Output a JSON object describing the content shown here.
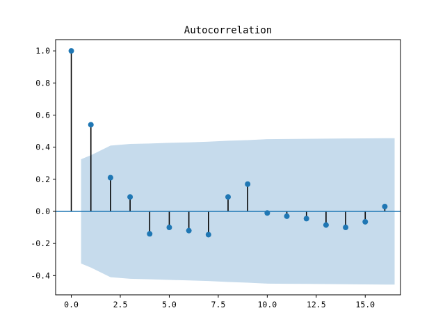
{
  "chart_data": {
    "type": "stem",
    "title": "Autocorrelation",
    "xlabel": "",
    "ylabel": "",
    "xlim": [
      -0.8,
      16.8
    ],
    "ylim": [
      -0.52,
      1.07
    ],
    "xticks": [
      0.0,
      2.5,
      5.0,
      7.5,
      10.0,
      12.5,
      15.0
    ],
    "xtick_labels": [
      "0.0",
      "2.5",
      "5.0",
      "7.5",
      "10.0",
      "12.5",
      "15.0"
    ],
    "yticks": [
      1.0,
      0.8,
      0.6,
      0.4,
      0.2,
      0.0,
      -0.2,
      -0.4
    ],
    "ytick_labels": [
      "1.0",
      "0.8",
      "0.6",
      "0.4",
      "0.2",
      "0.0",
      "-0.2",
      "-0.4"
    ],
    "grid": false,
    "lags": [
      0,
      1,
      2,
      3,
      4,
      5,
      6,
      7,
      8,
      9,
      10,
      11,
      12,
      13,
      14,
      15,
      16
    ],
    "values": [
      1.0,
      0.54,
      0.21,
      0.09,
      -0.14,
      -0.1,
      -0.12,
      -0.145,
      0.09,
      0.17,
      -0.01,
      -0.03,
      -0.045,
      -0.085,
      -0.1,
      -0.065,
      0.03
    ],
    "confidence_band": {
      "x": [
        0.5,
        1,
        2,
        3,
        4,
        5,
        6,
        7,
        8,
        9,
        10,
        11,
        12,
        13,
        14,
        15,
        16,
        16.5
      ],
      "upper": [
        0.325,
        0.35,
        0.41,
        0.42,
        0.423,
        0.427,
        0.43,
        0.434,
        0.44,
        0.444,
        0.45,
        0.451,
        0.452,
        0.453,
        0.454,
        0.455,
        0.456,
        0.456
      ],
      "lower": [
        -0.325,
        -0.35,
        -0.41,
        -0.42,
        -0.423,
        -0.427,
        -0.43,
        -0.434,
        -0.44,
        -0.444,
        -0.45,
        -0.451,
        -0.452,
        -0.453,
        -0.454,
        -0.455,
        -0.456,
        -0.456
      ]
    },
    "colors": {
      "marker": "#1f77b4",
      "stem": "#000000",
      "baseline": "#1f77b4",
      "band": "#c6dbec"
    }
  }
}
